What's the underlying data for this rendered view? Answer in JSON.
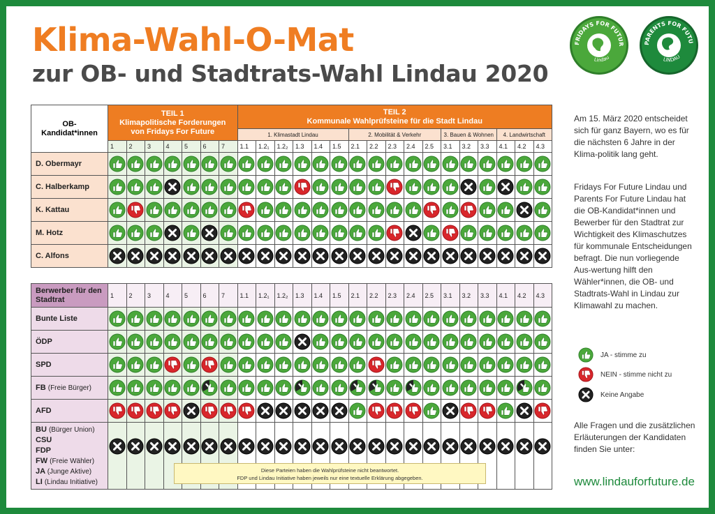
{
  "title": "Klima-Wahl-O-Mat",
  "subtitle": "zur OB- und Stadtrats-Wahl Lindau 2020",
  "logos": {
    "fff": "FRIDAYS FOR FUTURE",
    "fff_sub": "Lindau",
    "pff": "PARENTS FOR FUTURE",
    "pff_sub": "LINDAU"
  },
  "colors": {
    "orange": "#ee7d22",
    "green": "#4ba83b",
    "red": "#d9262b",
    "dark": "#222222",
    "frame": "#1e8a3c"
  },
  "table1": {
    "corner": "OB-\nKandidat*innen",
    "part1_title": "TEIL 1",
    "part1_sub": "Klimapolitische Forderungen von Fridays For Future",
    "part2_title": "TEIL 2",
    "part2_sub": "Kommunale Wahlprüfsteine für die Stadt Lindau",
    "part2_groups": [
      "1. Klimastadt Lindau",
      "2. Mobilität & Verkehr",
      "3. Bauen & Wohnen",
      "4. Landwirtschaft"
    ],
    "columns": [
      "1",
      "2",
      "3",
      "4",
      "5",
      "6",
      "7",
      "1.1",
      "1.2₁",
      "1.2₂",
      "1.3",
      "1.4",
      "1.5",
      "2.1",
      "2.2",
      "2.3",
      "2.4",
      "2.5",
      "3.1",
      "3.2",
      "3.3",
      "4.1",
      "4.2",
      "4.3"
    ],
    "rows": [
      {
        "name": "D. Obermayr",
        "answers": "YYYYYYYYYYYYYYYYYYYYYYYY"
      },
      {
        "name": "C. Halberkamp",
        "answers": "YYYXYYYYYYNYYYYNYYYXYXYY"
      },
      {
        "name": "K. Kattau",
        "answers": "YNYYYYYNYYYYYYYYYNYNYYXY"
      },
      {
        "name": "M. Hotz",
        "answers": "YYYXYXYYYYYYYYYNXYNYYYYY"
      },
      {
        "name": "C. Alfons",
        "answers": "XXXXXXXXXXXXXXXXXXXXXXXX"
      }
    ]
  },
  "table2": {
    "corner": "Berwerber für den Stadtrat",
    "columns": [
      "1",
      "2",
      "3",
      "4",
      "5",
      "6",
      "7",
      "1.1",
      "1.2₁",
      "1.2₂",
      "1.3",
      "1.4",
      "1.5",
      "2.1",
      "2.2",
      "2.3",
      "2.4",
      "2.5",
      "3.1",
      "3.2",
      "3.3",
      "4.1",
      "4.2",
      "4.3"
    ],
    "rows": [
      {
        "name": "Bunte Liste",
        "small": "",
        "answers": "YYYYYYYYYYYYYYYYYYYYYYYY"
      },
      {
        "name": "ÖDP",
        "small": "",
        "answers": "YYYYYYYYYYXYYYYYYYYYYYYY"
      },
      {
        "name": "SPD",
        "small": "",
        "answers": "YYYNYNYYYYYYYYNYYYYYYYYY"
      },
      {
        "name": "FB",
        "small": "(Freie Bürger)",
        "answers": "YYYYYMYYYYMYYMMYMYYYYYMY"
      },
      {
        "name": "AFD",
        "small": "",
        "answers": "NNNNXNNNXXXXXYNNNYXNNYXN"
      }
    ],
    "group_names": [
      {
        "name": "BU",
        "small": "(Bürger Union)"
      },
      {
        "name": "CSU",
        "small": ""
      },
      {
        "name": "FDP",
        "small": ""
      },
      {
        "name": "FW",
        "small": "(Freie Wähler)"
      },
      {
        "name": "JA",
        "small": "(Junge Aktive)"
      },
      {
        "name": "LI",
        "small": "(Lindau Initiative)"
      }
    ],
    "group_answers": "XXXXXXXXXXXXXXXXXXXXXXXX",
    "note_line1": "Diese Parteien haben die Wahlprüfsteine nicht beantwortet.",
    "note_line2": "FDP und Lindau Initiative haben jeweils nur eine textuelle Erklärung abgegeben."
  },
  "sidebar": {
    "para1": "Am 15. März 2020 entscheidet sich für ganz Bayern, wo es für die nächsten 6 Jahre in der Klima-politik lang geht.",
    "para2": "Fridays For Future Lindau und Parents For Future Lindau hat die OB-Kandidat*innen und Bewerber für den Stadtrat zur Wichtigkeit des Klimaschutzes für kommunale Entscheidungen befragt. Die nun vorliegende Aus-wertung hilft den Wähler*innen, die OB- und Stadtrats-Wahl in Lindau zur Klimawahl zu machen.",
    "legend_yes": "JA - stimme zu",
    "legend_no": "NEIN - stimme nicht zu",
    "legend_none": "Keine Angabe",
    "para3": "Alle Fragen und die zusätzlichen Erläuterungen der Kandidaten finden Sie unter:",
    "url": "www.lindauforfuture.de"
  }
}
